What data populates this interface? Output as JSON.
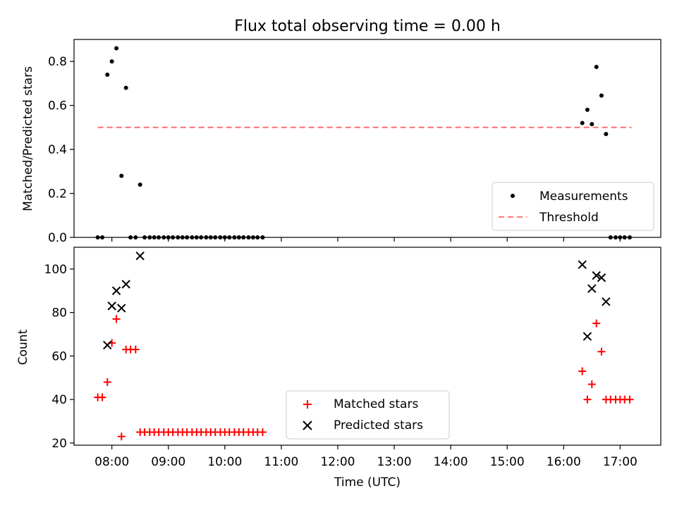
{
  "chart_data": {
    "title": "Flux total observing time = 0.00 h",
    "xlabel": "Time (UTC)",
    "xlim": [
      7.33,
      17.72
    ],
    "xticks": [
      {
        "v": 8,
        "label": "08:00"
      },
      {
        "v": 9,
        "label": "09:00"
      },
      {
        "v": 10,
        "label": "10:00"
      },
      {
        "v": 11,
        "label": "11:00"
      },
      {
        "v": 12,
        "label": "12:00"
      },
      {
        "v": 13,
        "label": "13:00"
      },
      {
        "v": 14,
        "label": "14:00"
      },
      {
        "v": 15,
        "label": "15:00"
      },
      {
        "v": 16,
        "label": "16:00"
      },
      {
        "v": 17,
        "label": "17:00"
      }
    ],
    "top": {
      "type": "scatter",
      "ylabel": "Matched/Predicted stars",
      "ylim": [
        0,
        0.9
      ],
      "yticks": [
        {
          "v": 0,
          "label": "0.0"
        },
        {
          "v": 0.2,
          "label": "0.2"
        },
        {
          "v": 0.4,
          "label": "0.4"
        },
        {
          "v": 0.6,
          "label": "0.6"
        },
        {
          "v": 0.8,
          "label": "0.8"
        }
      ],
      "threshold": {
        "name": "Threshold",
        "y": 0.5,
        "x": [
          7.75,
          17.2
        ],
        "color": "#ff7f7f"
      },
      "measurements": {
        "name": "Measurements",
        "color": "#000000",
        "x": [
          7.75,
          7.83,
          7.92,
          8.0,
          8.08,
          8.17,
          8.25,
          8.33,
          8.42,
          8.5,
          8.58,
          8.67,
          8.75,
          8.83,
          8.92,
          9.0,
          9.08,
          9.17,
          9.25,
          9.33,
          9.42,
          9.5,
          9.58,
          9.67,
          9.75,
          9.83,
          9.92,
          10.0,
          10.08,
          10.17,
          10.25,
          10.33,
          10.42,
          10.5,
          10.58,
          10.67,
          16.33,
          16.42,
          16.5,
          16.58,
          16.67,
          16.75,
          16.83,
          16.92,
          17.0,
          17.08,
          17.17
        ],
        "y": [
          0.0,
          0.0,
          0.74,
          0.8,
          0.86,
          0.28,
          0.68,
          0.0,
          0.0,
          0.24,
          0.0,
          0.0,
          0.0,
          0.0,
          0.0,
          0.0,
          0.0,
          0.0,
          0.0,
          0.0,
          0.0,
          0.0,
          0.0,
          0.0,
          0.0,
          0.0,
          0.0,
          0.0,
          0.0,
          0.0,
          0.0,
          0.0,
          0.0,
          0.0,
          0.0,
          0.0,
          0.52,
          0.58,
          0.515,
          0.775,
          0.645,
          0.47,
          0.0,
          0.0,
          0.0,
          0.0,
          0.0
        ]
      },
      "legend": {
        "placement": "lower-right",
        "entries": [
          "Measurements",
          "Threshold"
        ]
      }
    },
    "bottom": {
      "type": "scatter",
      "ylabel": "Count",
      "ylim": [
        19,
        110
      ],
      "yticks": [
        {
          "v": 20,
          "label": "20"
        },
        {
          "v": 40,
          "label": "40"
        },
        {
          "v": 60,
          "label": "60"
        },
        {
          "v": 80,
          "label": "80"
        },
        {
          "v": 100,
          "label": "100"
        }
      ],
      "matched": {
        "name": "Matched stars",
        "color": "#ff0000",
        "x": [
          7.75,
          7.83,
          7.92,
          8.0,
          8.08,
          8.17,
          8.25,
          8.33,
          8.42,
          8.5,
          8.58,
          8.67,
          8.75,
          8.83,
          8.92,
          9.0,
          9.08,
          9.17,
          9.25,
          9.33,
          9.42,
          9.5,
          9.58,
          9.67,
          9.75,
          9.83,
          9.92,
          10.0,
          10.08,
          10.17,
          10.25,
          10.33,
          10.42,
          10.5,
          10.58,
          10.67,
          16.33,
          16.42,
          16.5,
          16.58,
          16.67,
          16.75,
          16.83,
          16.92,
          17.0,
          17.08,
          17.17
        ],
        "y": [
          41,
          41,
          48,
          66,
          77,
          23,
          63,
          63,
          63,
          25,
          25,
          25,
          25,
          25,
          25,
          25,
          25,
          25,
          25,
          25,
          25,
          25,
          25,
          25,
          25,
          25,
          25,
          25,
          25,
          25,
          25,
          25,
          25,
          25,
          25,
          25,
          53,
          40,
          47,
          75,
          62,
          40,
          40,
          40,
          40,
          40,
          40
        ]
      },
      "predicted": {
        "name": "Predicted stars",
        "color": "#000000",
        "x": [
          7.92,
          8.0,
          8.08,
          8.17,
          8.25,
          8.5,
          16.33,
          16.42,
          16.5,
          16.58,
          16.67,
          16.75
        ],
        "y": [
          65,
          83,
          90,
          82,
          93,
          106,
          102,
          69,
          91,
          97,
          96,
          85
        ]
      },
      "legend": {
        "placement": "lower-center",
        "entries": [
          "Matched stars",
          "Predicted stars"
        ]
      }
    }
  }
}
